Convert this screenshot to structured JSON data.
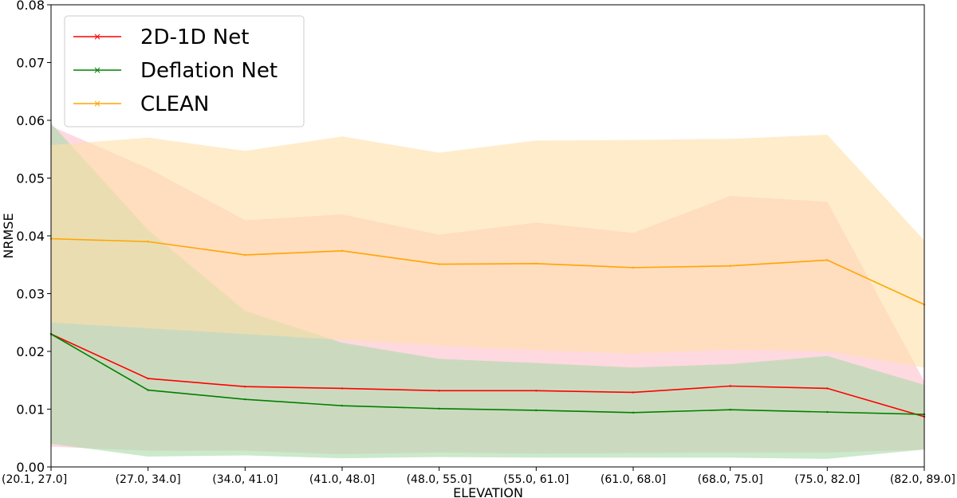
{
  "chart_data": {
    "type": "line",
    "xlabel": "ELEVATION",
    "ylabel": "NRMSE",
    "ylim": [
      0,
      0.08
    ],
    "yticks": [
      "0.00",
      "0.01",
      "0.02",
      "0.03",
      "0.04",
      "0.05",
      "0.06",
      "0.07",
      "0.08"
    ],
    "categories": [
      "(20.1, 27.0]",
      "(27.0, 34.0]",
      "(34.0, 41.0]",
      "(41.0, 48.0]",
      "(48.0, 55.0]",
      "(55.0, 61.0]",
      "(61.0, 68.0]",
      "(68.0, 75.0]",
      "(75.0, 82.0]",
      "(82.0, 89.0]"
    ],
    "grid": false,
    "legend_position": "top-left",
    "series": [
      {
        "name": "2D-1D Net",
        "color": "#ff0000",
        "band_color": "#ffc0cb",
        "values": [
          0.023,
          0.0153,
          0.0139,
          0.0136,
          0.0132,
          0.0132,
          0.0129,
          0.014,
          0.0136,
          0.0087
        ],
        "lower": [
          0.0035,
          0.0028,
          0.0028,
          0.0022,
          0.0025,
          0.0023,
          0.0024,
          0.0025,
          0.0025,
          0.003
        ],
        "upper": [
          0.059,
          0.0517,
          0.0427,
          0.0437,
          0.0402,
          0.0423,
          0.0405,
          0.0469,
          0.0459,
          0.0148
        ]
      },
      {
        "name": "Deflation Net",
        "color": "#008000",
        "band_color": "#a8dba8",
        "values": [
          0.023,
          0.0133,
          0.0117,
          0.0106,
          0.0101,
          0.0098,
          0.0094,
          0.0099,
          0.0095,
          0.0091
        ],
        "lower": [
          0.004,
          0.0018,
          0.002,
          0.0015,
          0.0017,
          0.0016,
          0.0016,
          0.0016,
          0.0014,
          0.003
        ],
        "upper": [
          0.0595,
          0.041,
          0.027,
          0.0215,
          0.0187,
          0.018,
          0.0172,
          0.0178,
          0.0192,
          0.0142
        ]
      },
      {
        "name": "CLEAN",
        "color": "#ffa500",
        "band_color": "#ffe0a8",
        "values": [
          0.0395,
          0.039,
          0.0367,
          0.0374,
          0.0351,
          0.0352,
          0.0345,
          0.0348,
          0.0358,
          0.0281
        ],
        "lower": [
          0.025,
          0.024,
          0.023,
          0.022,
          0.021,
          0.0202,
          0.0196,
          0.0203,
          0.02,
          0.0172
        ],
        "upper": [
          0.0557,
          0.057,
          0.0547,
          0.0572,
          0.0544,
          0.0565,
          0.0566,
          0.0568,
          0.0575,
          0.0392
        ]
      }
    ]
  }
}
